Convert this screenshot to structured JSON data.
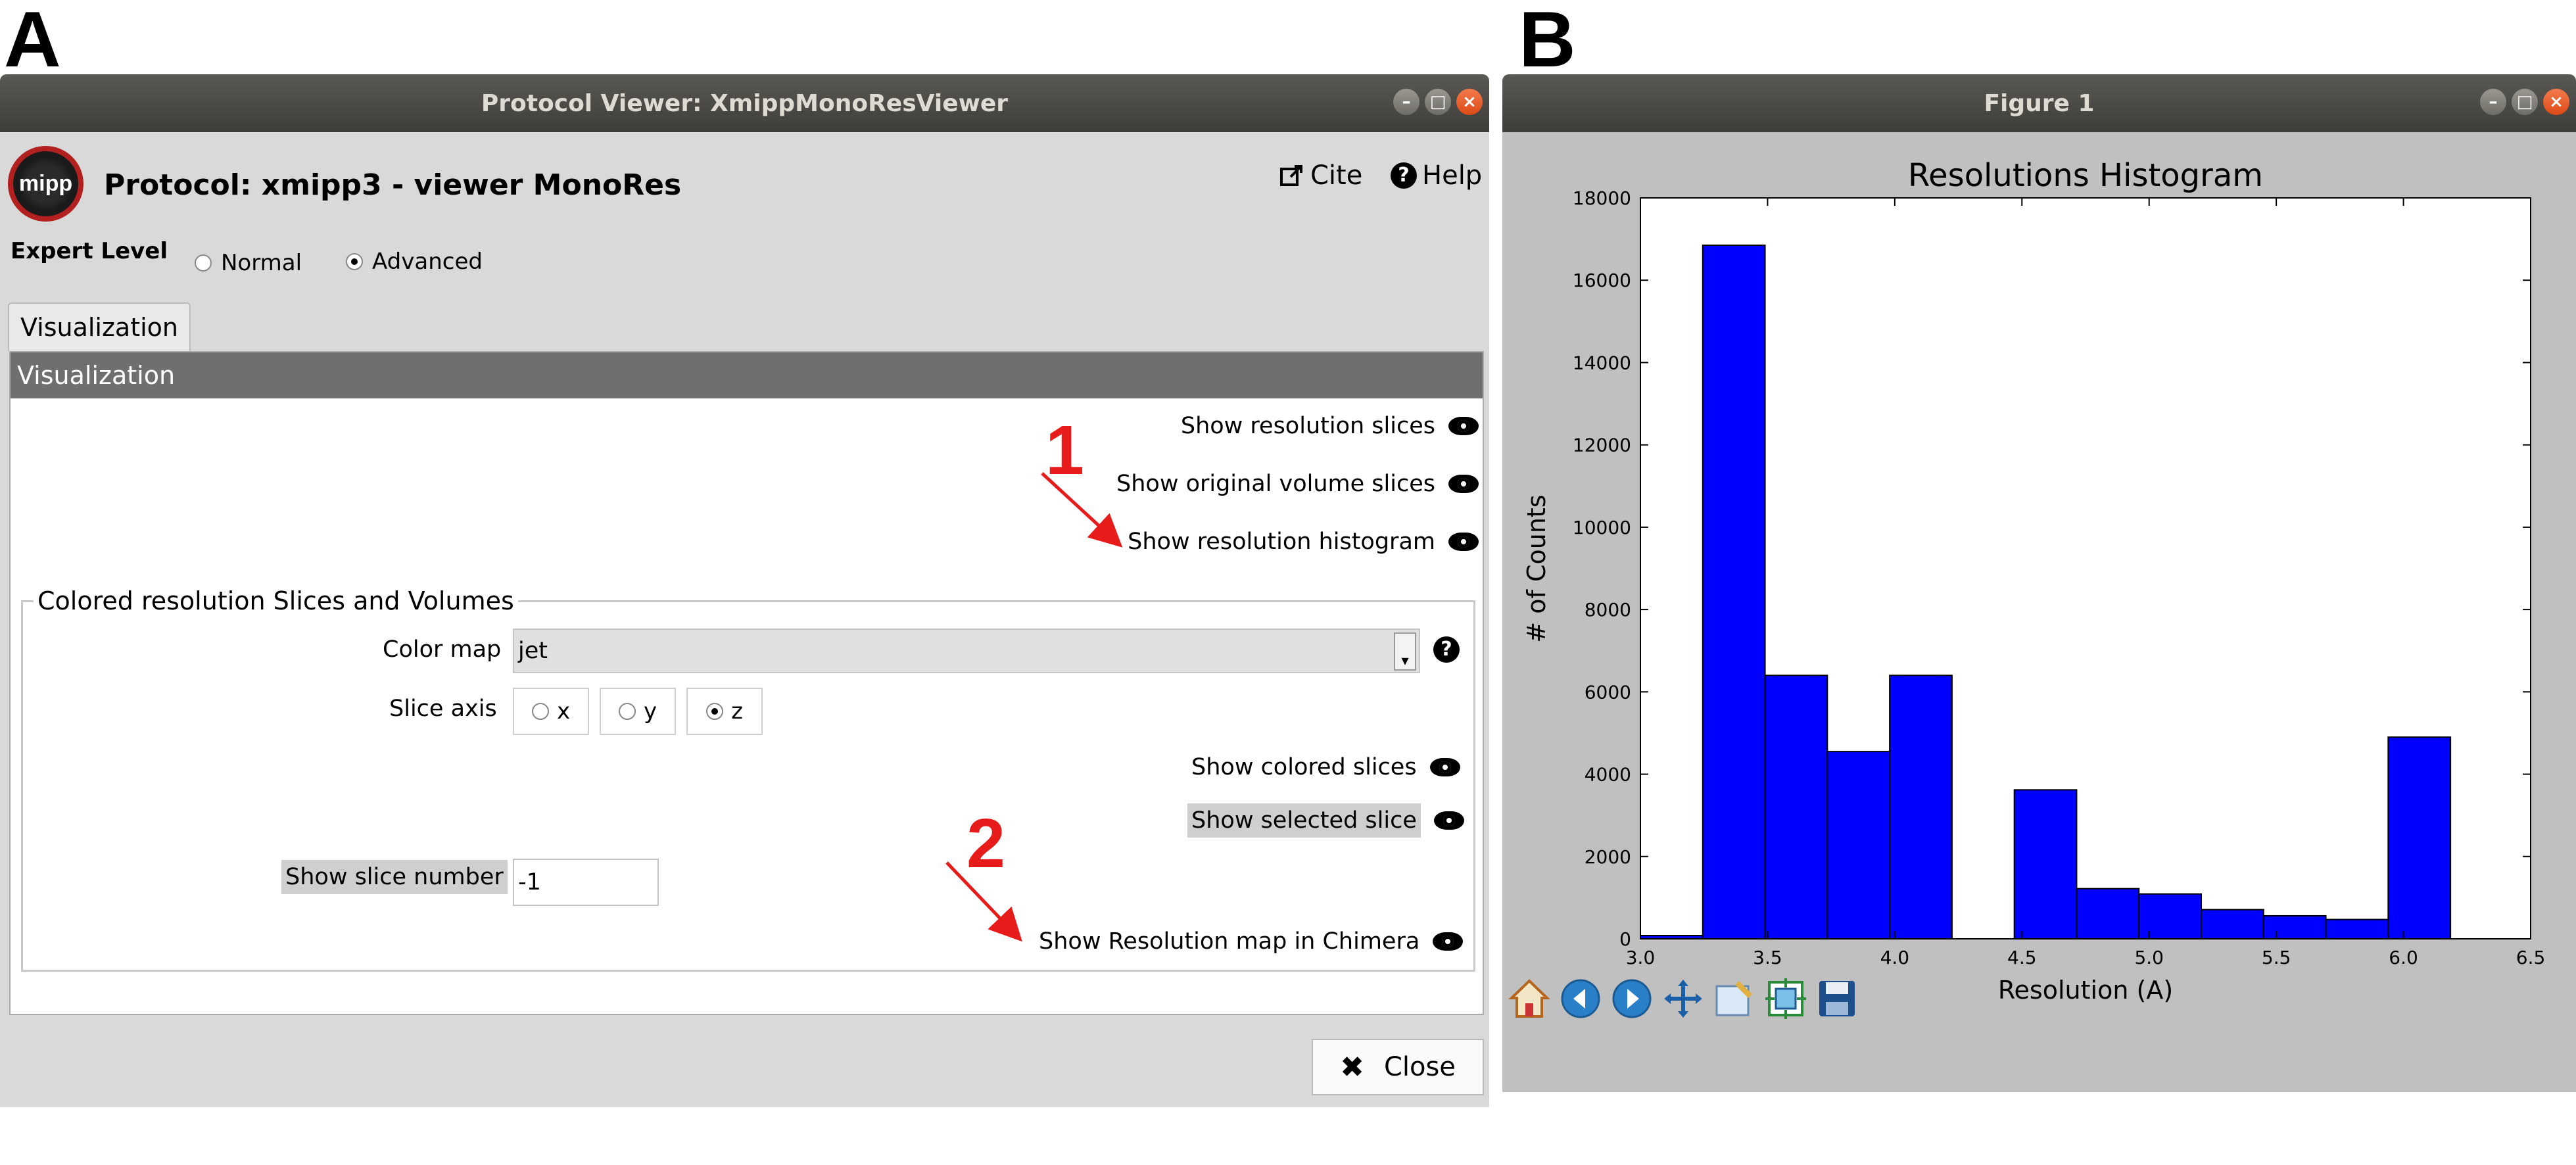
{
  "panel_labels": {
    "a": "A",
    "b": "B"
  },
  "window_a": {
    "title": "Protocol Viewer: XmippMonoResViewer",
    "logo_text": "mipp",
    "protocol_title": "Protocol: xmipp3 - viewer MonoRes",
    "cite_label": "Cite",
    "help_label": "Help",
    "expert_level": {
      "label": "Expert Level",
      "options": [
        "Normal",
        "Advanced"
      ],
      "selected": "Advanced"
    },
    "tab_label": "Visualization",
    "section_header": "Visualization",
    "actions": {
      "show_resolution_slices": "Show resolution slices",
      "show_original_volume_slices": "Show original volume slices",
      "show_resolution_histogram": "Show resolution histogram"
    },
    "group": {
      "title": "Colored resolution Slices and Volumes",
      "color_map_label": "Color map",
      "color_map_value": "jet",
      "slice_axis_label": "Slice axis",
      "slice_axis_options": [
        "x",
        "y",
        "z"
      ],
      "slice_axis_selected": "z",
      "show_colored_slices": "Show colored slices",
      "show_selected_slice": "Show selected slice",
      "show_slice_number_label": "Show slice number",
      "slice_number_value": "-1",
      "show_resolution_map_chimera": "Show Resolution map in Chimera"
    },
    "close_label": "Close",
    "annotations": {
      "first": "1",
      "second": "2"
    },
    "annotation_color": "#e81b1b"
  },
  "window_b": {
    "title": "Figure 1"
  },
  "chart_data": {
    "type": "bar",
    "title": "Resolutions Histogram",
    "xlabel": "Resolution (A)",
    "ylabel": "# of Counts",
    "xlim": [
      3.0,
      6.5
    ],
    "ylim": [
      0,
      18000
    ],
    "x_ticks": [
      "3.0",
      "3.5",
      "4.0",
      "4.5",
      "5.0",
      "5.5",
      "6.0",
      "6.5"
    ],
    "y_ticks": [
      "0",
      "2000",
      "4000",
      "6000",
      "8000",
      "10000",
      "12000",
      "14000",
      "16000",
      "18000"
    ],
    "bin_width": 0.245,
    "bins": [
      {
        "x": 3.0,
        "value": 80
      },
      {
        "x": 3.245,
        "value": 16850
      },
      {
        "x": 3.49,
        "value": 6400
      },
      {
        "x": 3.735,
        "value": 4550
      },
      {
        "x": 3.98,
        "value": 6400
      },
      {
        "x": 4.225,
        "value": 0
      },
      {
        "x": 4.47,
        "value": 3620
      },
      {
        "x": 4.715,
        "value": 1220
      },
      {
        "x": 4.96,
        "value": 1090
      },
      {
        "x": 5.205,
        "value": 710
      },
      {
        "x": 5.45,
        "value": 560
      },
      {
        "x": 5.695,
        "value": 470
      },
      {
        "x": 5.94,
        "value": 4900
      }
    ],
    "bar_color": "#0000ff",
    "grid": false
  },
  "toolbar_icons": [
    "home-icon",
    "back-icon",
    "forward-icon",
    "pan-icon",
    "zoom-icon",
    "subplots-icon",
    "save-icon"
  ]
}
